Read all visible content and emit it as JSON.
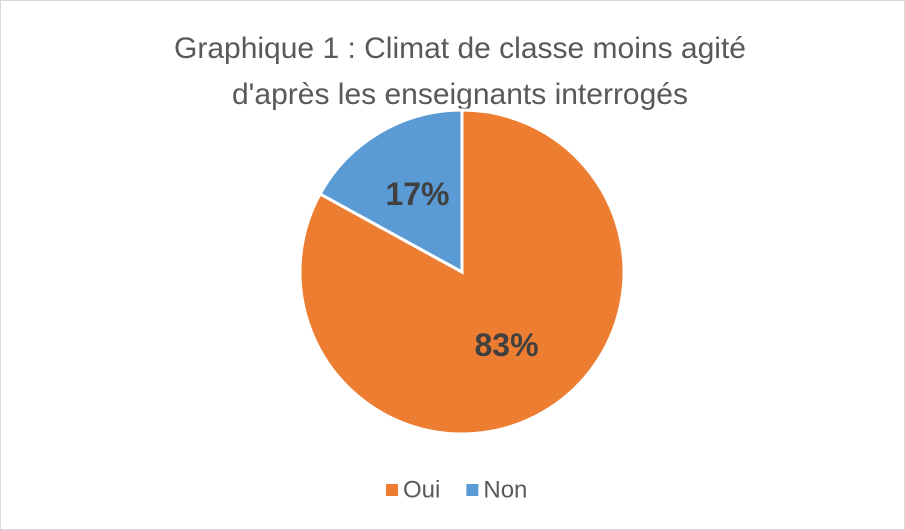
{
  "chart_data": {
    "type": "pie",
    "title": [
      "Graphique 1 : Climat de classe moins agité",
      "d'après les enseignants interrogés"
    ],
    "categories": [
      "Oui",
      "Non"
    ],
    "values": [
      83,
      17
    ],
    "value_labels": [
      "83%",
      "17%"
    ],
    "colors": [
      "#ED7D31",
      "#5B9BD5"
    ],
    "legend": "bottom"
  }
}
